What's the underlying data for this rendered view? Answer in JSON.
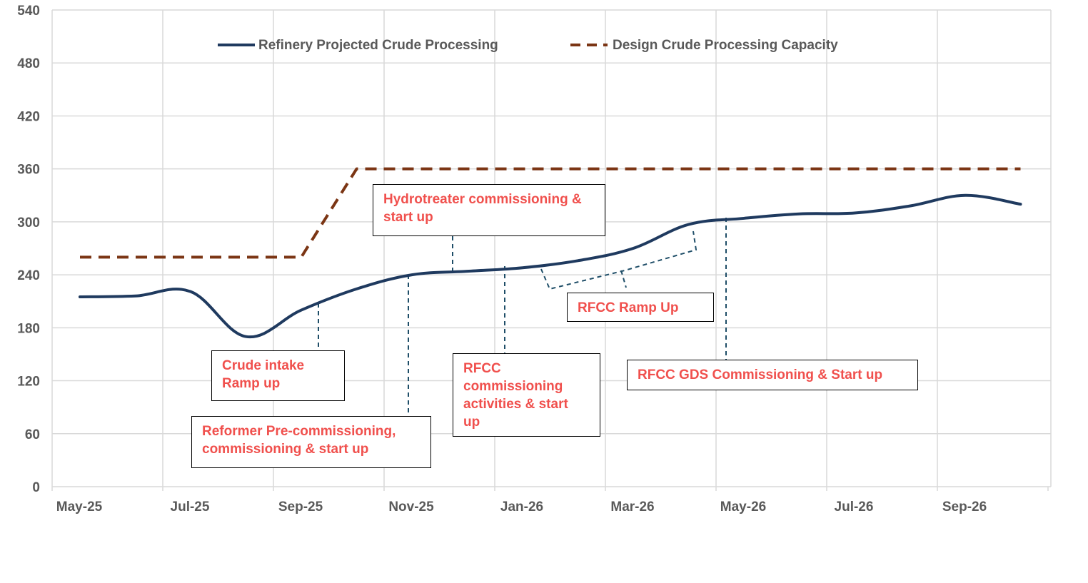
{
  "chart_data": {
    "type": "line",
    "x": [
      "May-25",
      "Jun-25",
      "Jul-25",
      "Aug-25",
      "Sep-25",
      "Oct-25",
      "Nov-25",
      "Dec-25",
      "Jan-26",
      "Feb-26",
      "Mar-26",
      "Apr-26",
      "May-26",
      "Jun-26",
      "Jul-26",
      "Aug-26",
      "Sep-26",
      "Oct-26"
    ],
    "x_tick_labels": [
      "May-25",
      "Jul-25",
      "Sep-25",
      "Nov-25",
      "Jan-26",
      "Mar-26",
      "May-26",
      "Jul-26",
      "Sep-26"
    ],
    "y_tick_labels": [
      "0",
      "60",
      "120",
      "180",
      "240",
      "300",
      "360",
      "420",
      "480",
      "540"
    ],
    "ylim": [
      0,
      540
    ],
    "grid": true,
    "legend_placement": "top",
    "series": [
      {
        "name": "Refinery Projected Crude Processing",
        "style": "solid",
        "color": "#1f3a5f",
        "points": [
          [
            "May-25",
            215
          ],
          [
            "Jun-25",
            216
          ],
          [
            "Jul-25",
            221
          ],
          [
            "Aug-25",
            170
          ],
          [
            "Sep-25",
            200
          ],
          [
            "Oct-25",
            224
          ],
          [
            "Nov-25",
            240
          ],
          [
            "Dec-25",
            244
          ],
          [
            "Jan-26",
            248
          ],
          [
            "Feb-26",
            256
          ],
          [
            "Mar-26",
            270
          ],
          [
            "Apr-26",
            297
          ],
          [
            "May-26",
            304
          ],
          [
            "Jun-26",
            309
          ],
          [
            "Jul-26",
            310
          ],
          [
            "Aug-26",
            318
          ],
          [
            "Sep-26",
            330
          ],
          [
            "Oct-26",
            320
          ]
        ]
      },
      {
        "name": "Design Crude Processing Capacity",
        "style": "dashed",
        "color": "#7b3514",
        "points": [
          [
            "May-25",
            260
          ],
          [
            "Sep-25",
            260
          ],
          [
            "Oct-25",
            360
          ],
          [
            "Oct-26",
            360
          ]
        ]
      }
    ],
    "annotations": [
      {
        "text": "Crude intake\nRamp up"
      },
      {
        "text": "Reformer Pre-commissioning,\ncommissioning & start up"
      },
      {
        "text": "Hydrotreater commissioning &\nstart up"
      },
      {
        "text": "RFCC\ncommissioning\nactivities & start\nup"
      },
      {
        "text": "RFCC Ramp Up"
      },
      {
        "text": "RFCC GDS Commissioning & Start up"
      }
    ],
    "colors": {
      "projected": "#1f3a5f",
      "capacity": "#7b3514",
      "annotation_text": "#f0504d",
      "leader": "#1f4e68",
      "grid": "#d9d9d9",
      "tick_text": "#595959"
    }
  }
}
